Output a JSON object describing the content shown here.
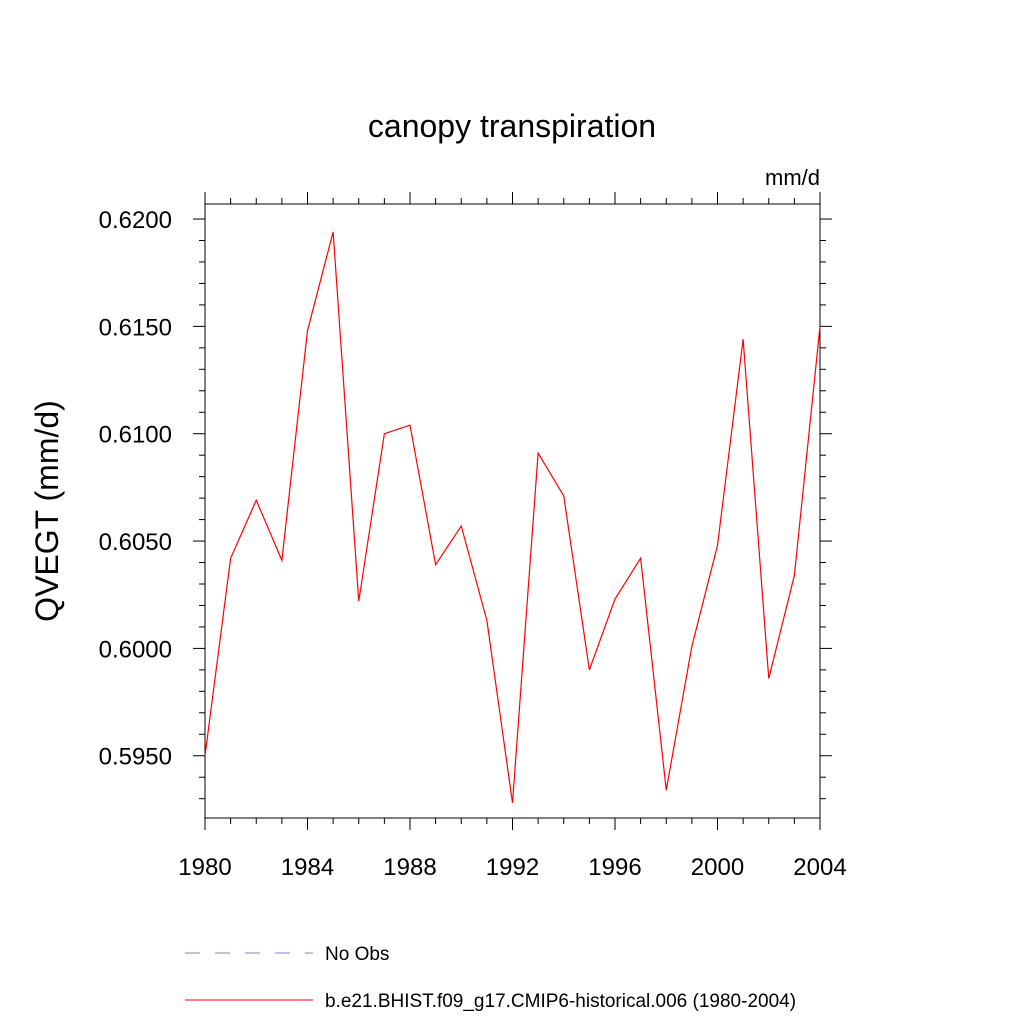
{
  "chart_data": {
    "type": "line",
    "title": "canopy transpiration",
    "units": "mm/d",
    "ylabel": "QVEGT  (mm/d)",
    "xlabel": "",
    "xlim": [
      1980,
      2004
    ],
    "ylim": [
      0.5921,
      0.6207
    ],
    "x_ticks": [
      1980,
      1984,
      1988,
      1992,
      1996,
      2000,
      2004
    ],
    "y_ticks": [
      0.595,
      0.6,
      0.605,
      0.61,
      0.615,
      0.62
    ],
    "y_tick_labels": [
      "0.5950",
      "0.6000",
      "0.6050",
      "0.6100",
      "0.6150",
      "0.6200"
    ],
    "grid": false,
    "legend_placement": "bottom",
    "series": [
      {
        "name": "No Obs",
        "color": "#7f7fd6",
        "style": "dashed",
        "x": [],
        "values": []
      },
      {
        "name": "b.e21.BHIST.f09_g17.CMIP6-historical.006 (1980-2004)",
        "color": "#ff0000",
        "style": "solid",
        "x": [
          1980,
          1981,
          1982,
          1983,
          1984,
          1985,
          1986,
          1987,
          1988,
          1989,
          1990,
          1991,
          1992,
          1993,
          1994,
          1995,
          1996,
          1997,
          1998,
          1999,
          2000,
          2001,
          2002,
          2003,
          2004
        ],
        "values": [
          0.595,
          0.6042,
          0.6069,
          0.6041,
          0.6148,
          0.6194,
          0.6022,
          0.61,
          0.6104,
          0.6039,
          0.6057,
          0.6013,
          0.5928,
          0.6091,
          0.6071,
          0.599,
          0.6023,
          0.6042,
          0.5934,
          0.6001,
          0.6048,
          0.6144,
          0.5986,
          0.6034,
          0.615
        ]
      }
    ]
  }
}
